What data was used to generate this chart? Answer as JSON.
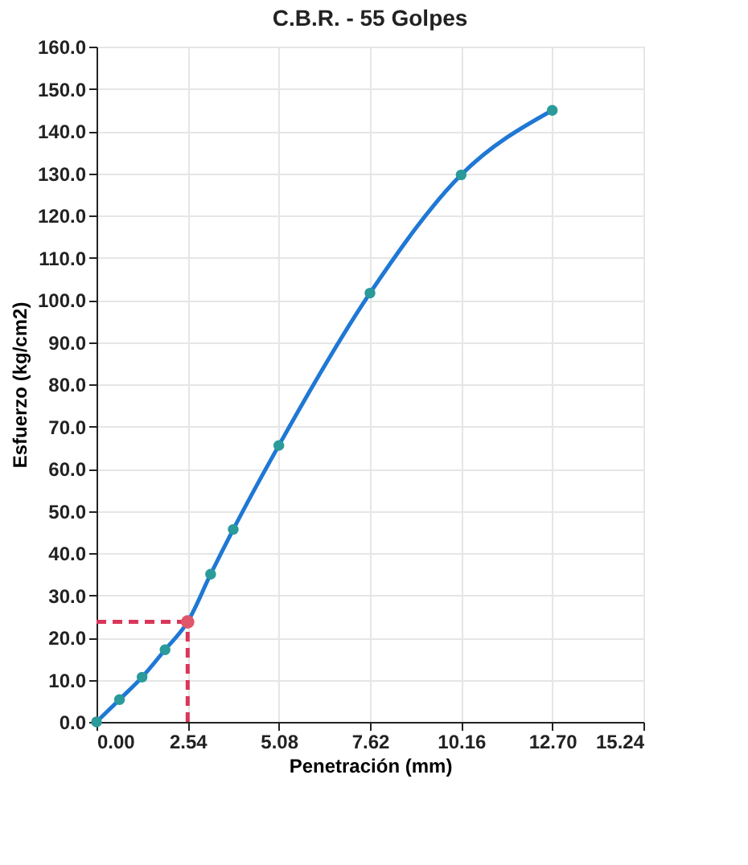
{
  "chart_data": {
    "type": "line",
    "title": "C.B.R. - 55 Golpes",
    "xlabel": "Penetración (mm)",
    "ylabel": "Esfuerzo (kg/cm2)",
    "xlim": [
      0,
      15.24
    ],
    "xticks": [
      {
        "value": 0,
        "label": "0.00"
      },
      2.54,
      5.08,
      7.62,
      10.16,
      {
        "value": 12.7,
        "label": "12.70"
      },
      15.24
    ],
    "ylim": [
      0,
      160
    ],
    "yticks": [
      {
        "value": 0,
        "label": "0.0"
      },
      {
        "value": 10,
        "label": "10.0"
      },
      {
        "value": 20,
        "label": "20.0"
      },
      {
        "value": 30,
        "label": "30.0"
      },
      {
        "value": 40,
        "label": "40.0"
      },
      {
        "value": 50,
        "label": "50.0"
      },
      {
        "value": 60,
        "label": "60.0"
      },
      {
        "value": 70,
        "label": "70.0"
      },
      {
        "value": 80,
        "label": "80.0"
      },
      {
        "value": 90,
        "label": "90.0"
      },
      {
        "value": 100,
        "label": "100.0"
      },
      {
        "value": 110,
        "label": "110.0"
      },
      {
        "value": 120,
        "label": "120.0"
      },
      {
        "value": 130,
        "label": "130.0"
      },
      {
        "value": 140,
        "label": "140.0"
      },
      {
        "value": 150,
        "label": "150.0"
      },
      {
        "value": 160,
        "label": "160.0"
      }
    ],
    "grid": true,
    "series": [
      {
        "color": "#1f78d4",
        "marker": "circle",
        "line_style": "solid",
        "x": [
          0,
          0.64,
          1.27,
          1.91,
          2.54,
          3.18,
          3.81,
          5.08,
          7.62,
          10.16,
          12.7
        ],
        "values": [
          0,
          5.3,
          10.6,
          17.1,
          23.7,
          35.0,
          45.6,
          65.5,
          101.6,
          129.6,
          144.9
        ]
      },
      {
        "type": "line",
        "color": "#d9365a",
        "marker": "none",
        "line_style": "dashed",
        "x": [
          0,
          2.54
        ],
        "values": [
          23.7,
          23.7
        ]
      },
      {
        "type": "line",
        "color": "#d9365a",
        "marker": "none",
        "line_style": "dashed",
        "x": [
          2.54,
          2.54
        ],
        "values": [
          0,
          23.7
        ]
      },
      {
        "type": "scatter",
        "color": "#e0566a",
        "marker": "circle",
        "x": [
          2.54
        ],
        "values": [
          23.7
        ]
      }
    ]
  }
}
